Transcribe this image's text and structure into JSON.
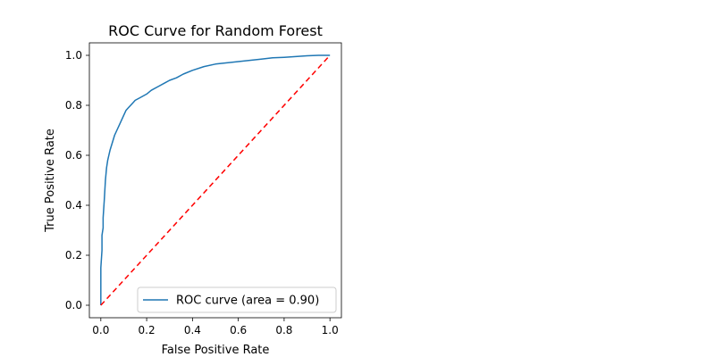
{
  "chart_data": {
    "type": "line",
    "title": "ROC Curve for Random Forest",
    "xlabel": "False Positive Rate",
    "ylabel": "True Positive Rate",
    "xlim": [
      -0.05,
      1.05
    ],
    "ylim": [
      -0.05,
      1.05
    ],
    "x_ticks": [
      0.0,
      0.2,
      0.4,
      0.6,
      0.8,
      1.0
    ],
    "y_ticks": [
      0.0,
      0.2,
      0.4,
      0.6,
      0.8,
      1.0
    ],
    "x_tick_labels": [
      "0.0",
      "0.2",
      "0.4",
      "0.6",
      "0.8",
      "1.0"
    ],
    "y_tick_labels": [
      "0.0",
      "0.2",
      "0.4",
      "0.6",
      "0.8",
      "1.0"
    ],
    "grid": false,
    "legend_position": "lower-right",
    "series": [
      {
        "name": "ROC curve (area = 0.90)",
        "color": "#1f77b4",
        "style": "solid",
        "x": [
          0.0,
          0.0,
          0.005,
          0.005,
          0.01,
          0.01,
          0.015,
          0.02,
          0.025,
          0.03,
          0.035,
          0.04,
          0.05,
          0.06,
          0.07,
          0.08,
          0.09,
          0.1,
          0.11,
          0.12,
          0.13,
          0.14,
          0.15,
          0.17,
          0.2,
          0.22,
          0.25,
          0.28,
          0.3,
          0.33,
          0.36,
          0.4,
          0.45,
          0.5,
          0.55,
          0.6,
          0.65,
          0.7,
          0.75,
          0.8,
          0.85,
          0.9,
          0.95,
          1.0
        ],
        "y": [
          0.0,
          0.15,
          0.22,
          0.28,
          0.31,
          0.35,
          0.42,
          0.5,
          0.55,
          0.58,
          0.6,
          0.62,
          0.65,
          0.68,
          0.7,
          0.72,
          0.74,
          0.76,
          0.78,
          0.79,
          0.8,
          0.81,
          0.82,
          0.83,
          0.845,
          0.86,
          0.875,
          0.89,
          0.9,
          0.91,
          0.925,
          0.94,
          0.955,
          0.965,
          0.97,
          0.975,
          0.98,
          0.985,
          0.99,
          0.992,
          0.995,
          0.998,
          1.0,
          1.0
        ]
      },
      {
        "name": "",
        "color": "#ff0000",
        "style": "dashed",
        "x": [
          0.0,
          1.0
        ],
        "y": [
          0.0,
          1.0
        ]
      }
    ]
  }
}
